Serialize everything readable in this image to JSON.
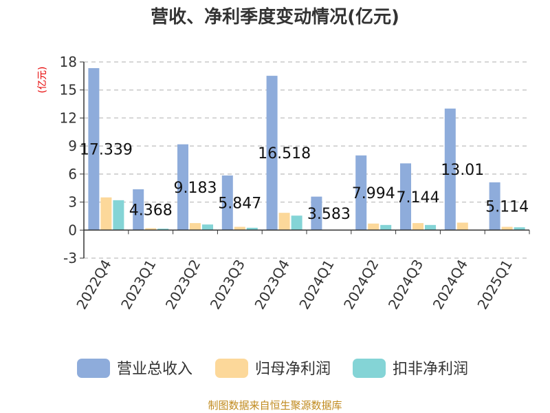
{
  "title": "营收、净利季度变动情况(亿元)",
  "source": "制图数据来自恒生聚源数据库",
  "chart_data": {
    "type": "bar",
    "unit_label": "(亿元)",
    "categories": [
      "2022Q4",
      "2023Q1",
      "2023Q2",
      "2023Q3",
      "2023Q4",
      "2024Q1",
      "2024Q2",
      "2024Q3",
      "2024Q4",
      "2025Q1"
    ],
    "ylim": [
      -3,
      18
    ],
    "yticks": [
      -3,
      0,
      3,
      6,
      9,
      12,
      15,
      18
    ],
    "grid": true,
    "legend_position": "bottom",
    "series": [
      {
        "name": "营业总收入",
        "color": "#8eacdb",
        "values": [
          17.339,
          4.368,
          9.183,
          5.847,
          16.518,
          3.583,
          7.994,
          7.144,
          13.01,
          5.114
        ],
        "labels": [
          "17.339",
          "4.368",
          "9.183",
          "5.847",
          "16.518",
          "3.583",
          "7.994",
          "7.144",
          "13.01",
          "5.114"
        ]
      },
      {
        "name": "归母净利润",
        "color": "#fcd89a",
        "values": [
          3.5,
          0.2,
          0.75,
          0.35,
          1.85,
          0.05,
          0.7,
          0.75,
          0.8,
          0.35
        ]
      },
      {
        "name": "扣非净利润",
        "color": "#84d4d6",
        "values": [
          3.2,
          0.15,
          0.6,
          0.25,
          1.55,
          0.03,
          0.55,
          0.55,
          0.0,
          0.3
        ]
      }
    ]
  }
}
